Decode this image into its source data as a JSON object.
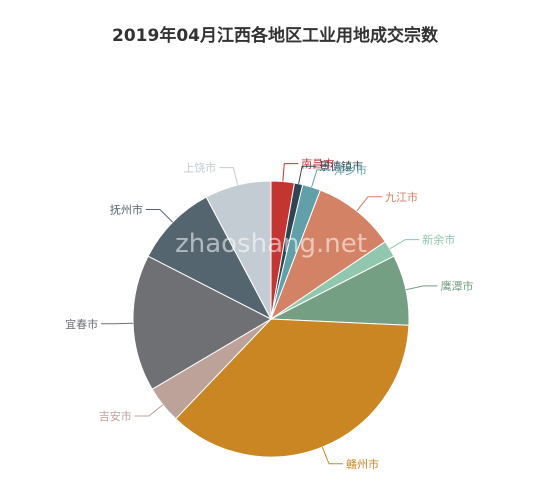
{
  "title": "2019年04月江西各地区工业用地成交宗数",
  "watermark": "zhaoshang.net",
  "chart_data": {
    "type": "pie",
    "title": "2019年04月江西各地区工业用地成交宗数",
    "slices": [
      {
        "name": "南昌市",
        "value": 2.8,
        "color": "#c23531"
      },
      {
        "name": "景德镇市",
        "value": 1.0,
        "color": "#2f4554"
      },
      {
        "name": "萍乡市",
        "value": 2.2,
        "color": "#61a0a8"
      },
      {
        "name": "九江市",
        "value": 10.0,
        "color": "#d48265"
      },
      {
        "name": "新余市",
        "value": 2.0,
        "color": "#91c7ae"
      },
      {
        "name": "鹰潭市",
        "value": 8.5,
        "color": "#749f83"
      },
      {
        "name": "赣州市",
        "value": 37.5,
        "color": "#ca8622"
      },
      {
        "name": "吉安市",
        "value": 4.5,
        "color": "#bda29a"
      },
      {
        "name": "宜春市",
        "value": 16.5,
        "color": "#6e7074"
      },
      {
        "name": "抚州市",
        "value": 10.0,
        "color": "#546570"
      },
      {
        "name": "上饶市",
        "value": 8.0,
        "color": "#c4ccd3"
      }
    ]
  }
}
